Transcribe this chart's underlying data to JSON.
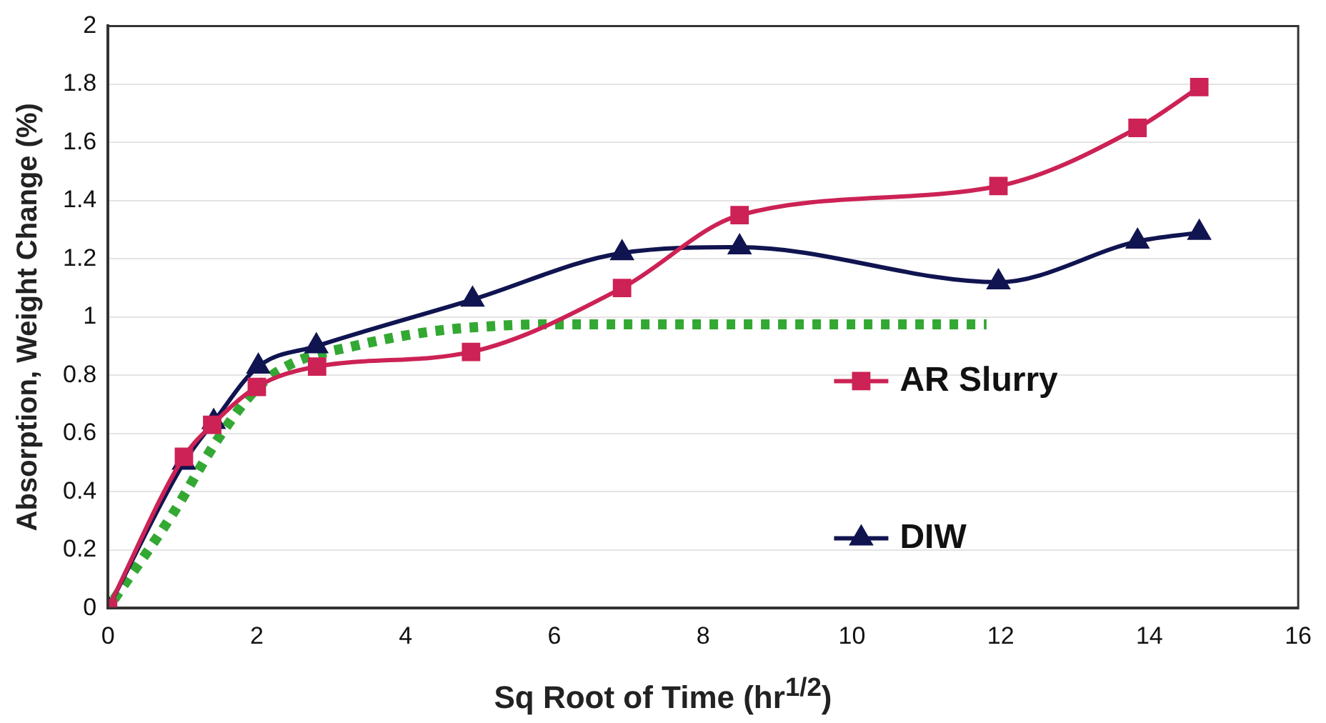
{
  "chart_data": {
    "type": "line",
    "xlabel": "Sq Root of Time (hr$^{1/2}$)",
    "ylabel": "Absorption, Weight Change (%)",
    "xlim": [
      0,
      16
    ],
    "xticks": [
      0,
      2,
      4,
      6,
      8,
      10,
      12,
      14,
      16
    ],
    "ylim": [
      0,
      2
    ],
    "yticks": [
      0,
      0.2,
      0.4,
      0.6,
      0.8,
      1,
      1.2,
      1.4,
      1.6,
      1.8,
      2
    ],
    "grid": "y",
    "legend": "right",
    "line_style": "solid",
    "series": [
      {
        "name": "AR Slurry",
        "color": "#cc2255",
        "marker": "square",
        "x": [
          0,
          1.02,
          1.4,
          2.0,
          2.81,
          4.88,
          6.91,
          8.49,
          11.97,
          13.84,
          14.67
        ],
        "values": [
          0,
          0.52,
          0.63,
          0.76,
          0.83,
          0.88,
          1.1,
          1.35,
          1.45,
          1.65,
          1.79
        ]
      },
      {
        "name": "DIW",
        "color": "#101450",
        "marker": "triangle",
        "x": [
          0,
          1.02,
          1.42,
          2.02,
          2.8,
          4.9,
          6.91,
          8.49,
          11.97,
          13.84,
          14.67
        ],
        "values": [
          0,
          0.5,
          0.64,
          0.83,
          0.9,
          1.06,
          1.22,
          1.24,
          1.12,
          1.26,
          1.29
        ]
      },
      {
        "color": "#33a833",
        "marker": "none",
        "line_style": "dotted",
        "x": [
          0.08,
          0.86,
          1.5,
          2.02,
          2.47,
          3.3,
          4.33,
          5.24,
          5.95,
          11.81
        ],
        "values": [
          0.03,
          0.32,
          0.59,
          0.76,
          0.84,
          0.9,
          0.95,
          0.97,
          0.975,
          0.975
        ]
      }
    ]
  }
}
